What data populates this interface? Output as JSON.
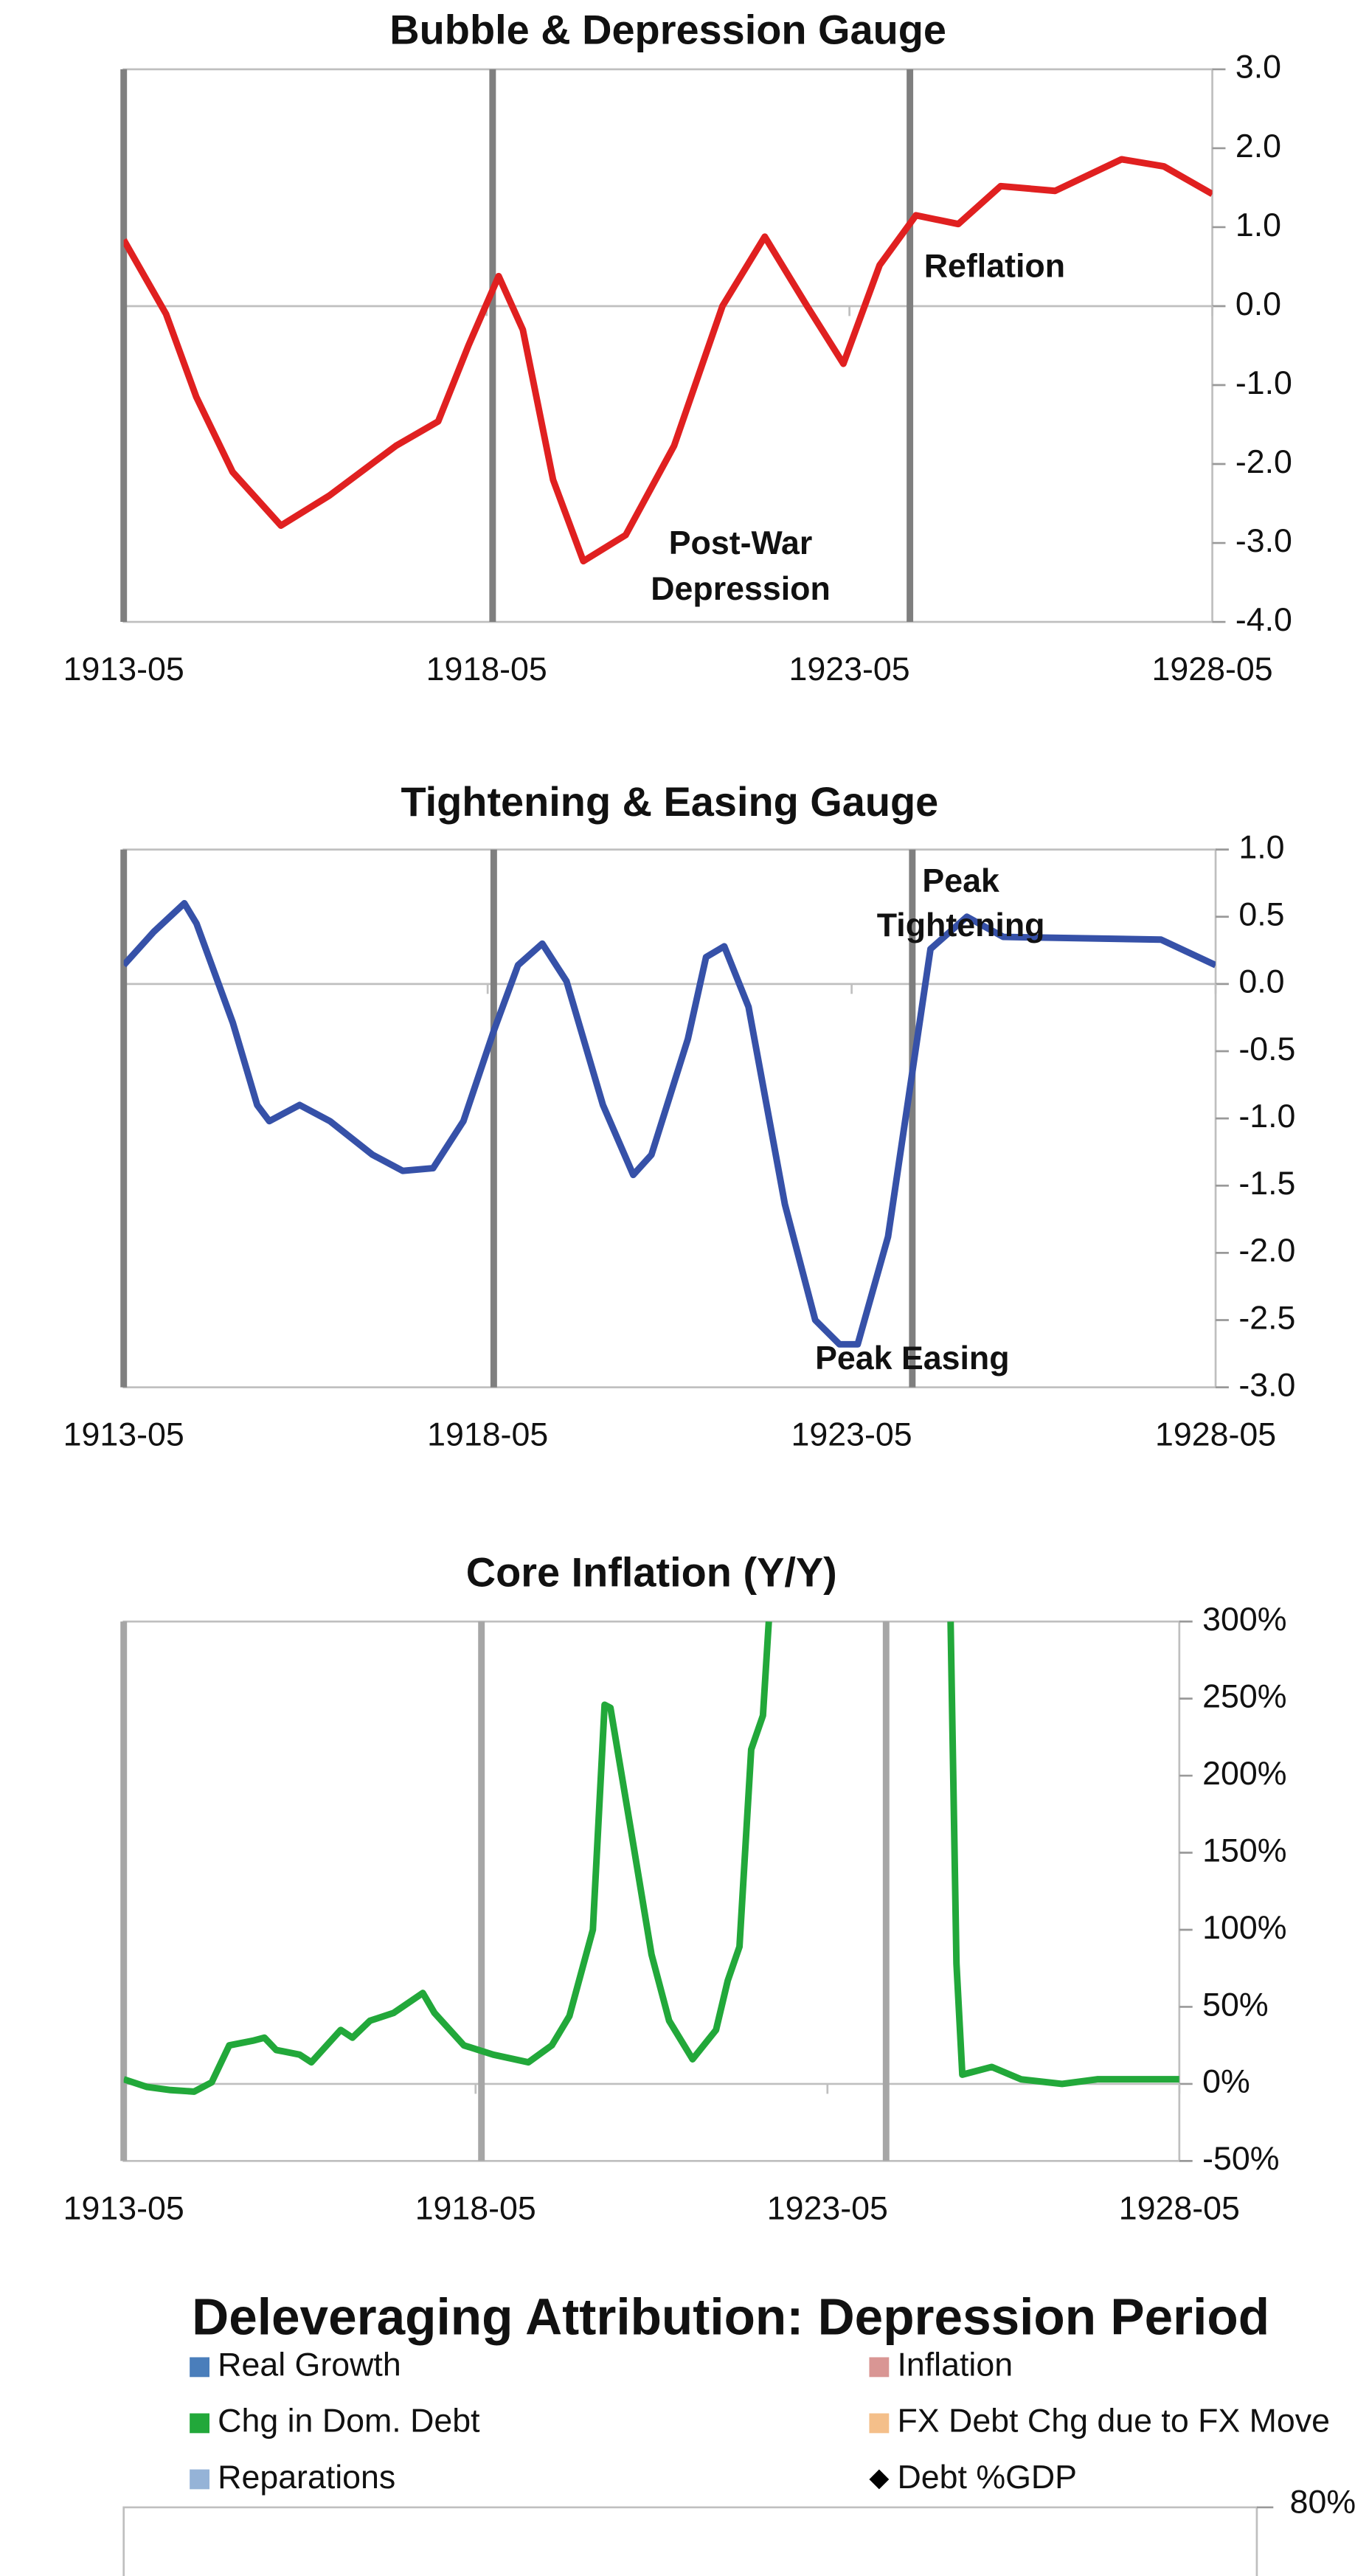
{
  "chart_data": [
    {
      "type": "line",
      "title": "Bubble & Depression Gauge",
      "color": "#e02020",
      "x": [
        "1913-05",
        "1913-12",
        "1914-05",
        "1914-11",
        "1915-07",
        "1916-03",
        "1917-02",
        "1917-09",
        "1918-02",
        "1918-07",
        "1918-11",
        "1919-04",
        "1919-09",
        "1920-04",
        "1920-12",
        "1921-08",
        "1922-03",
        "1922-10",
        "1923-04",
        "1923-10",
        "1924-04",
        "1924-11",
        "1925-06",
        "1926-03",
        "1927-02",
        "1927-09",
        "1928-05"
      ],
      "values": [
        0.84,
        -0.1,
        -1.15,
        -2.1,
        -2.78,
        -2.4,
        -1.77,
        -1.46,
        -0.5,
        0.38,
        -0.3,
        -2.2,
        -3.23,
        -2.9,
        -1.77,
        0,
        0.88,
        0,
        -0.73,
        0.52,
        1.15,
        1.04,
        1.52,
        1.46,
        1.86,
        1.77,
        1.42
      ],
      "xlim": [
        "1913-05",
        "1928-05"
      ],
      "xticks": [
        "1913-05",
        "1918-05",
        "1923-05",
        "1928-05"
      ],
      "ylim": [
        -4,
        3
      ],
      "yticks": [
        {
          "value": 3,
          "label": "3.0"
        },
        {
          "value": 2,
          "label": "2.0"
        },
        {
          "value": 1,
          "label": "1.0"
        },
        {
          "value": 0,
          "label": "0.0"
        },
        {
          "value": -1,
          "label": "-1.0"
        },
        {
          "value": -2,
          "label": "-2.0"
        },
        {
          "value": -3,
          "label": "-3.0"
        },
        {
          "value": -4,
          "label": "-4.0"
        }
      ],
      "vlines": [
        "1913-05",
        "1918-06",
        "1924-03"
      ],
      "vline_color": "#7f7f7f",
      "annotations": [
        {
          "text": "Reflation",
          "x": "1925-05",
          "y": 0.48
        },
        {
          "text": "Post-War",
          "x": "1921-11",
          "y": -3.03
        },
        {
          "text": "Depression",
          "x": "1921-11",
          "y": -3.61
        }
      ]
    },
    {
      "type": "line",
      "title": "Tightening & Easing Gauge",
      "color": "#3651a8",
      "x": [
        "1913-05",
        "1913-10",
        "1914-03",
        "1914-05",
        "1914-11",
        "1915-03",
        "1915-05",
        "1915-10",
        "1916-03",
        "1916-10",
        "1917-03",
        "1917-08",
        "1918-01",
        "1918-06",
        "1918-10",
        "1919-02",
        "1919-06",
        "1919-12",
        "1920-05",
        "1920-08",
        "1921-02",
        "1921-05",
        "1921-08",
        "1921-12",
        "1922-06",
        "1922-11",
        "1923-03",
        "1923-06",
        "1923-11",
        "1924-06",
        "1924-12",
        "1925-06",
        "1927-08",
        "1928-05"
      ],
      "values": [
        0.14,
        0.39,
        0.6,
        0.45,
        -0.29,
        -0.9,
        -1.02,
        -0.9,
        -1.02,
        -1.27,
        -1.39,
        -1.37,
        -1.02,
        -0.35,
        0.14,
        0.3,
        0.02,
        -0.9,
        -1.42,
        -1.27,
        -0.41,
        0.2,
        0.28,
        -0.17,
        -1.64,
        -2.5,
        -2.68,
        -2.68,
        -1.88,
        0.26,
        0.5,
        0.35,
        0.33,
        0.14
      ],
      "xlim": [
        "1913-05",
        "1928-05"
      ],
      "xticks": [
        "1913-05",
        "1918-05",
        "1923-05",
        "1928-05"
      ],
      "ylim": [
        -3,
        1
      ],
      "yticks": [
        {
          "value": 1,
          "label": "1.0"
        },
        {
          "value": 0.5,
          "label": "0.5"
        },
        {
          "value": 0,
          "label": "0.0"
        },
        {
          "value": -0.5,
          "label": "-0.5"
        },
        {
          "value": -1,
          "label": "-1.0"
        },
        {
          "value": -1.5,
          "label": "-1.5"
        },
        {
          "value": -2,
          "label": "-2.0"
        },
        {
          "value": -2.5,
          "label": "-2.5"
        },
        {
          "value": -3,
          "label": "-3.0"
        }
      ],
      "vlines": [
        "1913-05",
        "1918-06",
        "1924-03"
      ],
      "vline_color": "#7f7f7f",
      "annotations": [
        {
          "text": "Peak",
          "x": "1924-11",
          "y": 0.75
        },
        {
          "text": "Tightening",
          "x": "1924-11",
          "y": 0.42
        },
        {
          "text": "Peak Easing",
          "x": "1924-03",
          "y": -2.8
        }
      ]
    },
    {
      "type": "line",
      "title": "Core Inflation (Y/Y)",
      "color": "#22a83a",
      "x": [
        "1913-05",
        "1913-09",
        "1914-01",
        "1914-05",
        "1914-08",
        "1914-11",
        "1915-03",
        "1915-05",
        "1915-07",
        "1915-11",
        "1916-01",
        "1916-06",
        "1916-08",
        "1916-11",
        "1917-03",
        "1917-08",
        "1917-10",
        "1918-03",
        "1918-08",
        "1919-02",
        "1919-06",
        "1919-09",
        "1920-01",
        "1920-03",
        "1920-04",
        "1920-08",
        "1920-11",
        "1921-02",
        "1921-06",
        "1921-10",
        "1921-12",
        "1922-02",
        "1922-04",
        "1922-06",
        "1922-07",
        "1924-06",
        "1925-02",
        "1925-03",
        "1925-04",
        "1925-09",
        "1926-02",
        "1926-09",
        "1927-03",
        "1927-10",
        "1928-05"
      ],
      "values": [
        3,
        -2,
        -4,
        -5,
        1,
        25,
        28,
        30,
        22,
        19,
        14,
        35,
        30,
        41,
        46,
        59,
        46,
        25,
        19,
        14,
        25,
        44,
        100,
        246,
        244,
        153,
        84,
        41,
        16,
        35,
        67,
        89,
        217,
        239,
        300,
        null,
        300,
        78,
        6,
        11,
        3,
        0,
        3,
        3,
        3
      ],
      "xlim": [
        "1913-05",
        "1928-05"
      ],
      "xticks": [
        "1913-05",
        "1918-05",
        "1923-05",
        "1928-05"
      ],
      "ylim": [
        -50,
        300
      ],
      "yticks": [
        {
          "value": 300,
          "label": "300%"
        },
        {
          "value": 250,
          "label": "250%"
        },
        {
          "value": 200,
          "label": "200%"
        },
        {
          "value": 150,
          "label": "150%"
        },
        {
          "value": 100,
          "label": "100%"
        },
        {
          "value": 50,
          "label": "50%"
        },
        {
          "value": 0,
          "label": "0%"
        },
        {
          "value": -50,
          "label": "-50%"
        }
      ],
      "vlines": [
        "1913-05",
        "1918-06",
        "1924-03"
      ],
      "vline_color": "#a6a6a6",
      "annotations": []
    },
    {
      "type": "bar",
      "title": "Deleveraging Attribution: Depression Period",
      "series": [
        {
          "name": "Real Growth",
          "color": "#4a7ebb"
        },
        {
          "name": "Inflation",
          "color": "#d99694"
        },
        {
          "name": "Chg in Dom. Debt",
          "color": "#22a83a"
        },
        {
          "name": "FX Debt Chg due to FX Move",
          "color": "#f4bf8a"
        },
        {
          "name": "Reparations",
          "color": "#95b3d7"
        },
        {
          "name": "Debt %GDP",
          "color": "#000000",
          "marker": "diamond"
        }
      ],
      "yticks": [
        {
          "value": 80,
          "label": "80%"
        }
      ]
    }
  ]
}
